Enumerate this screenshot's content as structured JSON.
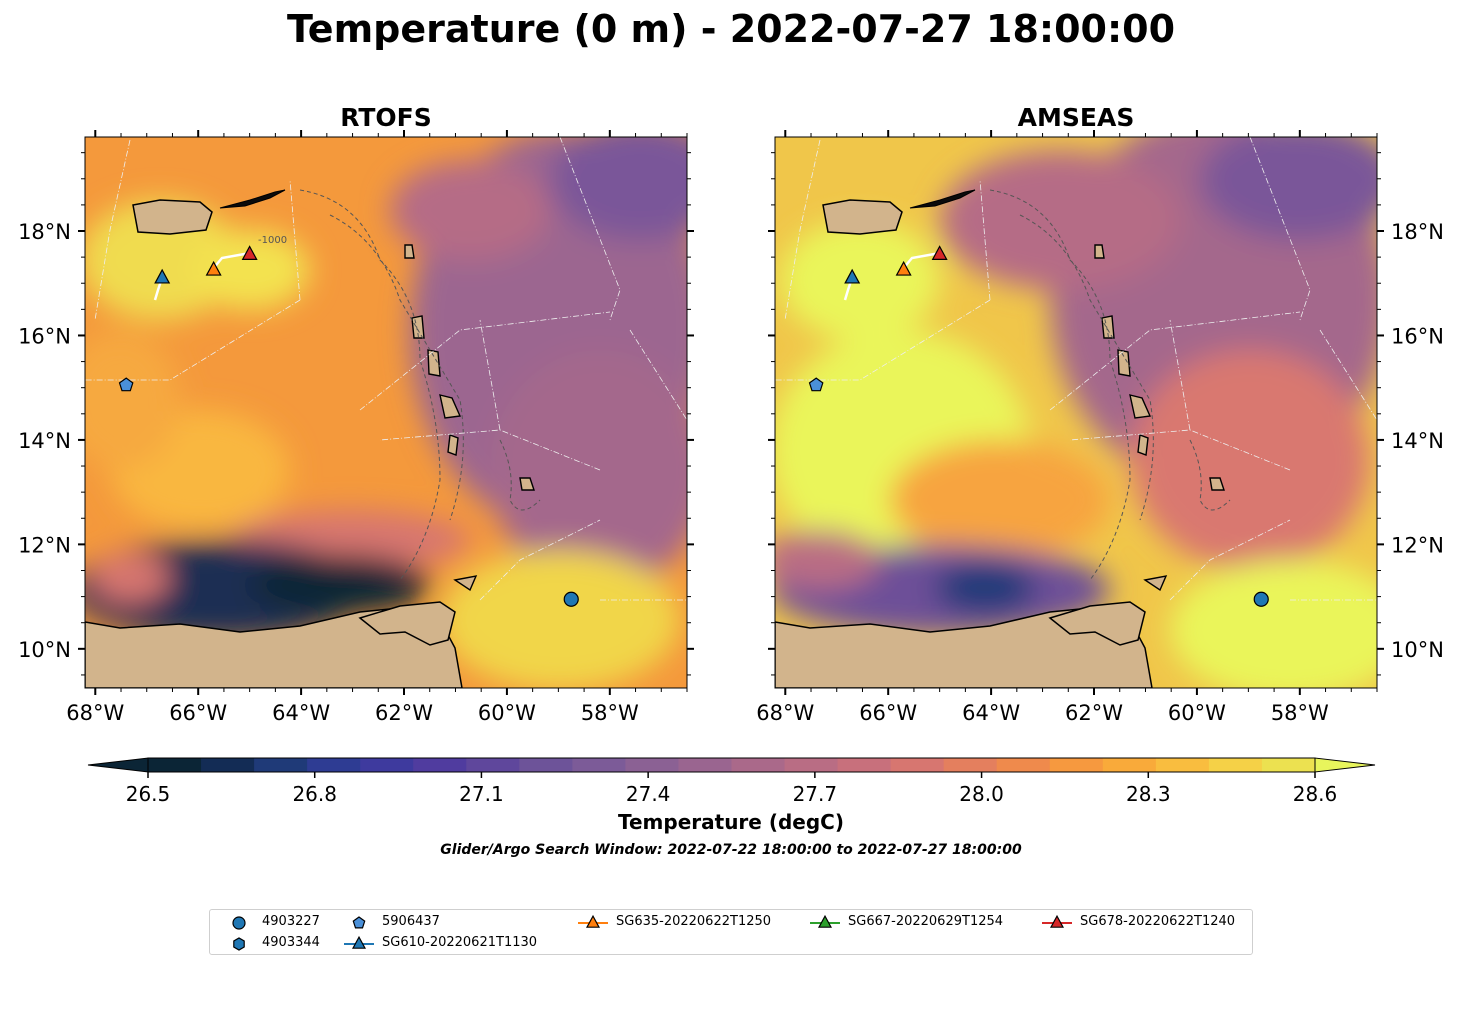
{
  "figure": {
    "title": "Temperature (0 m) - 2022-07-27 18:00:00"
  },
  "panels": [
    {
      "id": "rtofs",
      "title": "RTOFS",
      "y_axis_side": "left"
    },
    {
      "id": "amseas",
      "title": "AMSEAS",
      "y_axis_side": "right"
    }
  ],
  "map_extent": {
    "lon_min": -68.2,
    "lon_max": -56.5,
    "lat_min": 9.25,
    "lat_max": 19.8
  },
  "x_ticks": [
    {
      "value": -68,
      "label": "68°W"
    },
    {
      "value": -66,
      "label": "66°W"
    },
    {
      "value": -64,
      "label": "64°W"
    },
    {
      "value": -62,
      "label": "62°W"
    },
    {
      "value": -60,
      "label": "60°W"
    },
    {
      "value": -58,
      "label": "58°W"
    }
  ],
  "y_ticks": [
    {
      "value": 10,
      "label": "10°N"
    },
    {
      "value": 12,
      "label": "12°N"
    },
    {
      "value": 14,
      "label": "14°N"
    },
    {
      "value": 16,
      "label": "16°N"
    },
    {
      "value": 18,
      "label": "18°N"
    }
  ],
  "colorbar": {
    "label": "Temperature (degC)",
    "min": 26.5,
    "max": 28.6,
    "ticks": [
      {
        "value": 26.5,
        "label": "26.5"
      },
      {
        "value": 26.8,
        "label": "26.8"
      },
      {
        "value": 27.1,
        "label": "27.1"
      },
      {
        "value": 27.4,
        "label": "27.4"
      },
      {
        "value": 27.7,
        "label": "27.7"
      },
      {
        "value": 28.0,
        "label": "28.0"
      },
      {
        "value": 28.3,
        "label": "28.3"
      },
      {
        "value": 28.6,
        "label": "28.6"
      }
    ],
    "colors": [
      "#0b2536",
      "#132c55",
      "#1f3a78",
      "#2e3c93",
      "#3e3a9e",
      "#503c9f",
      "#5f479c",
      "#6d5399",
      "#7c5b98",
      "#8b6194",
      "#9a6590",
      "#aa698a",
      "#b96d84",
      "#c8707c",
      "#d77670",
      "#e47f5e",
      "#ef8a4c",
      "#f6993f",
      "#f9aa3a",
      "#f9bd3f",
      "#f5d147",
      "#ece150"
    ],
    "extend_low_color": "#0b2536",
    "extend_high_color": "#e8f55c"
  },
  "search_window": "Glider/Argo Search Window: 2022-07-22 18:00:00 to 2022-07-27 18:00:00",
  "contour_label": "-1000",
  "colors": {
    "land": "#d2b48c",
    "sea_warm": "#f7a13a",
    "sea_hot": "#e9f35a",
    "sea_cool": "#a2668e",
    "sea_cold": "#6d4f98",
    "sea_coldest": "#0b2536",
    "blue_marker": "#1f77b4",
    "steel_marker": "#4a90d9",
    "orange_marker": "#ff7f0e",
    "green_marker": "#2ca02c",
    "red_marker": "#d62728"
  },
  "observations": [
    {
      "name": "4903227",
      "lon": -58.75,
      "lat": 10.95,
      "marker": "circle",
      "color": "#1f77b4"
    },
    {
      "name": "5906437",
      "lon": -67.4,
      "lat": 15.05,
      "marker": "pentagon",
      "color": "#4a90d9"
    },
    {
      "name": "SG610-20220621T1130",
      "lon": -66.7,
      "lat": 17.1,
      "marker": "triangle",
      "color": "#1f77b4"
    },
    {
      "name": "SG635-20220622T1250",
      "lon": -65.7,
      "lat": 17.25,
      "marker": "triangle",
      "color": "#ff7f0e"
    },
    {
      "name": "SG678-20220622T1240",
      "lon": -65.0,
      "lat": 17.55,
      "marker": "triangle",
      "color": "#d62728"
    }
  ],
  "legend": [
    {
      "label": "4903227",
      "marker": "circle",
      "color": "#1f77b4",
      "line": false
    },
    {
      "label": "4903344",
      "marker": "hexagon",
      "color": "#1f77b4",
      "line": false
    },
    {
      "label": "5906437",
      "marker": "pentagon",
      "color": "#4a90d9",
      "line": false
    },
    {
      "label": "SG610-20220621T1130",
      "marker": "triangle",
      "color": "#1f77b4",
      "line": true
    },
    {
      "label": "SG635-20220622T1250",
      "marker": "triangle",
      "color": "#ff7f0e",
      "line": true
    },
    {
      "label": "SG667-20220629T1254",
      "marker": "triangle",
      "color": "#2ca02c",
      "line": true
    },
    {
      "label": "SG678-20220622T1240",
      "marker": "triangle",
      "color": "#d62728",
      "line": true
    }
  ]
}
